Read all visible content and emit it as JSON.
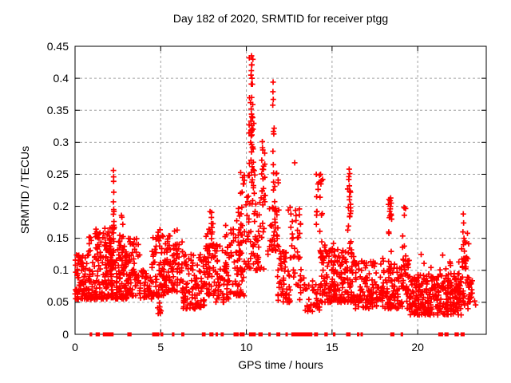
{
  "chart_data": {
    "type": "scatter",
    "title": "Day 182 of 2020, SRMTID for receiver ptgg",
    "xlabel": "GPS time / hours",
    "ylabel": "SRMTID / TECUs",
    "xlim": [
      0,
      24
    ],
    "ylim": [
      0,
      0.45
    ],
    "xticks": [
      0,
      5,
      10,
      15,
      20
    ],
    "yticks": [
      0,
      0.05,
      0.1,
      0.15,
      0.2,
      0.25,
      0.3,
      0.35,
      0.4,
      0.45
    ],
    "grid": true,
    "legend": "none",
    "background": "#ffffff",
    "frame_color": "#000000",
    "grid_color": "#a0a0a0",
    "marker": {
      "shape": "plus",
      "color": "#ff0000",
      "size": 7,
      "stroke_width": 1.7
    },
    "seed": 182,
    "cluster_fields": [
      "x_start",
      "x_end",
      "y_min",
      "y_max",
      "count",
      "skew"
    ],
    "clusters": [
      [
        0.0,
        0.8,
        0.055,
        0.125,
        85,
        1.5
      ],
      [
        0.8,
        1.6,
        0.055,
        0.165,
        85,
        1.7
      ],
      [
        1.6,
        2.25,
        0.055,
        0.17,
        105,
        1.5
      ],
      [
        2.2,
        2.35,
        0.1,
        0.205,
        14,
        1.0
      ],
      [
        2.35,
        3.1,
        0.055,
        0.135,
        85,
        1.4
      ],
      [
        2.5,
        2.95,
        0.13,
        0.19,
        12,
        1.0
      ],
      [
        3.1,
        3.8,
        0.06,
        0.15,
        65,
        1.5
      ],
      [
        3.8,
        4.5,
        0.055,
        0.105,
        42,
        1.3
      ],
      [
        4.5,
        5.2,
        0.06,
        0.155,
        58,
        1.5
      ],
      [
        4.8,
        5.05,
        0.032,
        0.08,
        14,
        1.0
      ],
      [
        4.8,
        5.0,
        0.135,
        0.175,
        8,
        1.0
      ],
      [
        5.2,
        6.3,
        0.065,
        0.145,
        85,
        1.5
      ],
      [
        5.35,
        5.55,
        0.125,
        0.155,
        6,
        1.0
      ],
      [
        5.8,
        6.0,
        0.125,
        0.165,
        7,
        1.0
      ],
      [
        6.3,
        7.6,
        0.04,
        0.125,
        105,
        1.4
      ],
      [
        7.6,
        8.2,
        0.06,
        0.16,
        55,
        1.3
      ],
      [
        7.8,
        8.05,
        0.12,
        0.2,
        14,
        1.0
      ],
      [
        8.2,
        9.0,
        0.05,
        0.14,
        55,
        1.4
      ],
      [
        8.75,
        8.92,
        0.1,
        0.195,
        10,
        1.0
      ],
      [
        9.0,
        9.9,
        0.06,
        0.165,
        65,
        1.3
      ],
      [
        9.4,
        9.8,
        0.12,
        0.225,
        16,
        1.0
      ],
      [
        9.6,
        9.95,
        0.22,
        0.26,
        5,
        1.0
      ],
      [
        9.95,
        10.5,
        0.1,
        0.25,
        42,
        1.0
      ],
      [
        10.15,
        10.45,
        0.25,
        0.435,
        26,
        1.0
      ],
      [
        10.5,
        11.3,
        0.1,
        0.225,
        38,
        1.2
      ],
      [
        10.85,
        11.08,
        0.21,
        0.3,
        11,
        1.0
      ],
      [
        11.35,
        11.9,
        0.13,
        0.26,
        45,
        1.2
      ],
      [
        11.8,
        12.4,
        0.05,
        0.135,
        42,
        1.3
      ],
      [
        12.4,
        13.2,
        0.05,
        0.2,
        50,
        1.7
      ],
      [
        13.2,
        14.3,
        0.035,
        0.09,
        38,
        1.3
      ],
      [
        14.05,
        14.5,
        0.12,
        0.25,
        13,
        1.0
      ],
      [
        14.3,
        15.6,
        0.05,
        0.135,
        125,
        1.5
      ],
      [
        14.4,
        15.4,
        0.12,
        0.15,
        9,
        1.0
      ],
      [
        15.6,
        16.35,
        0.05,
        0.14,
        65,
        1.4
      ],
      [
        15.9,
        16.15,
        0.13,
        0.26,
        18,
        1.0
      ],
      [
        16.35,
        17.6,
        0.04,
        0.115,
        95,
        1.4
      ],
      [
        17.6,
        18.7,
        0.04,
        0.12,
        80,
        1.4
      ],
      [
        18.25,
        18.5,
        0.12,
        0.215,
        12,
        1.0
      ],
      [
        18.7,
        19.5,
        0.04,
        0.12,
        60,
        1.4
      ],
      [
        19.1,
        19.3,
        0.115,
        0.2,
        7,
        1.0
      ],
      [
        19.5,
        21.1,
        0.03,
        0.095,
        150,
        1.3
      ],
      [
        21.1,
        22.55,
        0.03,
        0.095,
        140,
        1.3
      ],
      [
        20.2,
        22.4,
        0.095,
        0.125,
        10,
        1.0
      ],
      [
        22.55,
        23.0,
        0.04,
        0.16,
        38,
        1.5
      ],
      [
        23.0,
        23.2,
        0.05,
        0.09,
        15,
        1.2
      ]
    ],
    "extra_points": [
      [
        10.3,
        0.435
      ],
      [
        10.32,
        0.421
      ],
      [
        10.27,
        0.405
      ],
      [
        10.33,
        0.4
      ],
      [
        10.29,
        0.391
      ],
      [
        10.31,
        0.37
      ],
      [
        10.24,
        0.362
      ],
      [
        10.28,
        0.352
      ],
      [
        10.3,
        0.344
      ],
      [
        10.26,
        0.333
      ],
      [
        10.32,
        0.318
      ],
      [
        10.28,
        0.31
      ],
      [
        10.25,
        0.3
      ],
      [
        10.35,
        0.292
      ],
      [
        10.3,
        0.285
      ],
      [
        10.27,
        0.272
      ],
      [
        10.33,
        0.262
      ],
      [
        10.29,
        0.253
      ],
      [
        11.56,
        0.394
      ],
      [
        11.55,
        0.379
      ],
      [
        11.57,
        0.367
      ],
      [
        11.54,
        0.358
      ],
      [
        11.62,
        0.322
      ],
      [
        11.58,
        0.317
      ],
      [
        11.6,
        0.313
      ],
      [
        11.55,
        0.286
      ],
      [
        11.57,
        0.265
      ],
      [
        11.59,
        0.252
      ],
      [
        10.93,
        0.301
      ],
      [
        10.96,
        0.288
      ],
      [
        10.9,
        0.272
      ],
      [
        10.94,
        0.258
      ],
      [
        10.97,
        0.243
      ],
      [
        2.24,
        0.256
      ],
      [
        2.25,
        0.246
      ],
      [
        2.25,
        0.239
      ],
      [
        2.26,
        0.222
      ],
      [
        2.24,
        0.207
      ],
      [
        2.27,
        0.192
      ],
      [
        16.0,
        0.258
      ],
      [
        16.03,
        0.251
      ],
      [
        15.98,
        0.242
      ],
      [
        16.01,
        0.232
      ],
      [
        16.05,
        0.224
      ],
      [
        16.02,
        0.215
      ],
      [
        14.08,
        0.25
      ],
      [
        14.33,
        0.25
      ],
      [
        14.45,
        0.242
      ],
      [
        14.38,
        0.24
      ],
      [
        14.1,
        0.215
      ],
      [
        14.12,
        0.192
      ],
      [
        12.82,
        0.268
      ],
      [
        12.55,
        0.198
      ],
      [
        12.6,
        0.188
      ],
      [
        9.78,
        0.245
      ],
      [
        9.82,
        0.235
      ],
      [
        9.75,
        0.222
      ],
      [
        18.42,
        0.213
      ],
      [
        18.45,
        0.205
      ],
      [
        18.4,
        0.196
      ],
      [
        18.38,
        0.185
      ],
      [
        19.2,
        0.198
      ],
      [
        19.22,
        0.186
      ],
      [
        22.66,
        0.188
      ],
      [
        22.68,
        0.174
      ],
      [
        22.64,
        0.16
      ],
      [
        22.7,
        0.15
      ],
      [
        22.67,
        0.14
      ],
      [
        23.32,
        0.052
      ],
      [
        23.38,
        0.046
      ]
    ],
    "zero_runs": [
      [
        0.85,
        1.0
      ],
      [
        1.2,
        1.45
      ],
      [
        1.62,
        2.25
      ],
      [
        3.05,
        3.3
      ],
      [
        4.5,
        4.92
      ],
      [
        4.98,
        5.15
      ],
      [
        5.65,
        5.8
      ],
      [
        6.2,
        6.38
      ],
      [
        7.4,
        7.62
      ],
      [
        7.84,
        8.08
      ],
      [
        8.2,
        8.28
      ],
      [
        8.5,
        8.68
      ],
      [
        9.25,
        9.55
      ],
      [
        9.6,
        9.9
      ],
      [
        10.15,
        10.55
      ],
      [
        10.7,
        10.95
      ],
      [
        11.28,
        11.42
      ],
      [
        11.75,
        11.98
      ],
      [
        12.28,
        12.42
      ],
      [
        12.62,
        13.85
      ],
      [
        13.95,
        14.18
      ],
      [
        14.55,
        14.75
      ],
      [
        15.05,
        15.2
      ],
      [
        15.82,
        16.08
      ],
      [
        16.45,
        16.6
      ],
      [
        16.66,
        16.74
      ],
      [
        18.4,
        18.64
      ],
      [
        19.0,
        19.15
      ],
      [
        21.2,
        21.48
      ],
      [
        21.56,
        21.8
      ],
      [
        22.15,
        22.4
      ],
      [
        22.5,
        22.74
      ]
    ]
  }
}
